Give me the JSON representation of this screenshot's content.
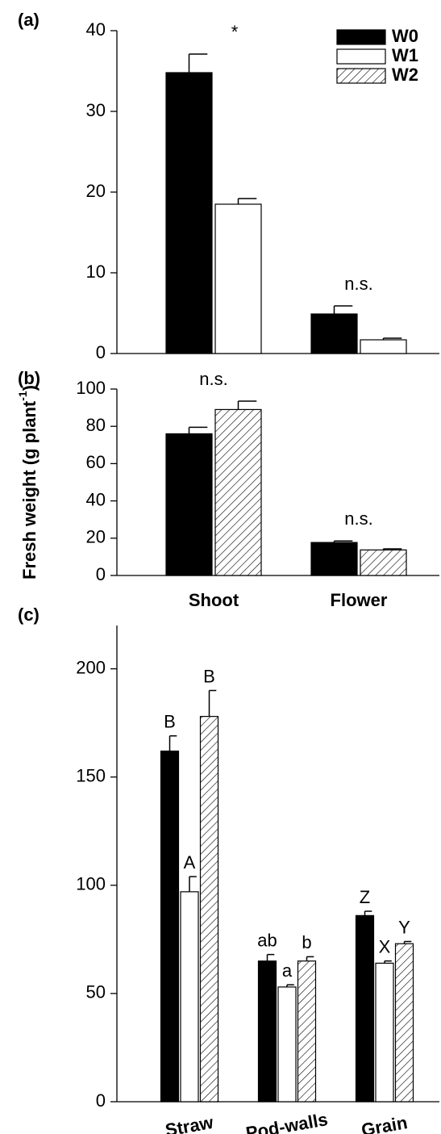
{
  "chart_data": [
    {
      "type": "bar",
      "panel_label": "(a)",
      "categories": [
        null,
        null
      ],
      "series": [
        {
          "name": "W0",
          "color": "#000000",
          "values": [
            34.8,
            4.9
          ],
          "errors": [
            2.3,
            1.0
          ]
        },
        {
          "name": "W1",
          "color": "#ffffff",
          "values": [
            18.5,
            1.7
          ],
          "errors": [
            0.7,
            0.2
          ]
        },
        {
          "name": "W2",
          "color": "#ffffff",
          "pattern": "hatch",
          "values": [
            null,
            null
          ],
          "errors": [
            null,
            null
          ]
        }
      ],
      "annotations": [
        "*",
        "n.s."
      ],
      "ylim": [
        0,
        40
      ],
      "yticks": [
        0,
        10,
        20,
        30,
        40
      ],
      "legend": "top-right"
    },
    {
      "type": "bar",
      "panel_label": "(b)",
      "ylabel_parts": [
        "Fresh weight (g plant",
        "-1",
        ")"
      ],
      "categories": [
        "Shoot",
        "Flower"
      ],
      "series": [
        {
          "color": "#000000",
          "values": [
            76,
            17.7
          ],
          "errors": [
            3.5,
            0.8
          ]
        },
        {
          "color": "#ffffff",
          "pattern": "hatch",
          "values": [
            89,
            13.7
          ],
          "errors": [
            4.5,
            0.6
          ]
        }
      ],
      "annotations": [
        "n.s.",
        "n.s."
      ],
      "ylim": [
        0,
        100
      ],
      "yticks": [
        0,
        20,
        40,
        60,
        80,
        100
      ]
    },
    {
      "type": "bar",
      "panel_label": "(c)",
      "categories": [
        "Straw",
        "Pod-walls",
        "Grain"
      ],
      "series": [
        {
          "color": "#000000",
          "values": [
            162,
            65,
            86
          ],
          "errors": [
            7,
            3,
            2
          ],
          "labels": [
            "B",
            "ab",
            "Z"
          ]
        },
        {
          "color": "#ffffff",
          "values": [
            97,
            53,
            64
          ],
          "errors": [
            7,
            1,
            1
          ],
          "labels": [
            "A",
            "a",
            "X"
          ]
        },
        {
          "color": "#ffffff",
          "pattern": "hatch",
          "values": [
            178,
            65,
            73
          ],
          "errors": [
            12,
            2,
            1
          ],
          "labels": [
            "B",
            "b",
            "Y"
          ]
        }
      ],
      "ylim": [
        0,
        220
      ],
      "yticks": [
        0,
        50,
        100,
        150,
        200
      ]
    }
  ]
}
